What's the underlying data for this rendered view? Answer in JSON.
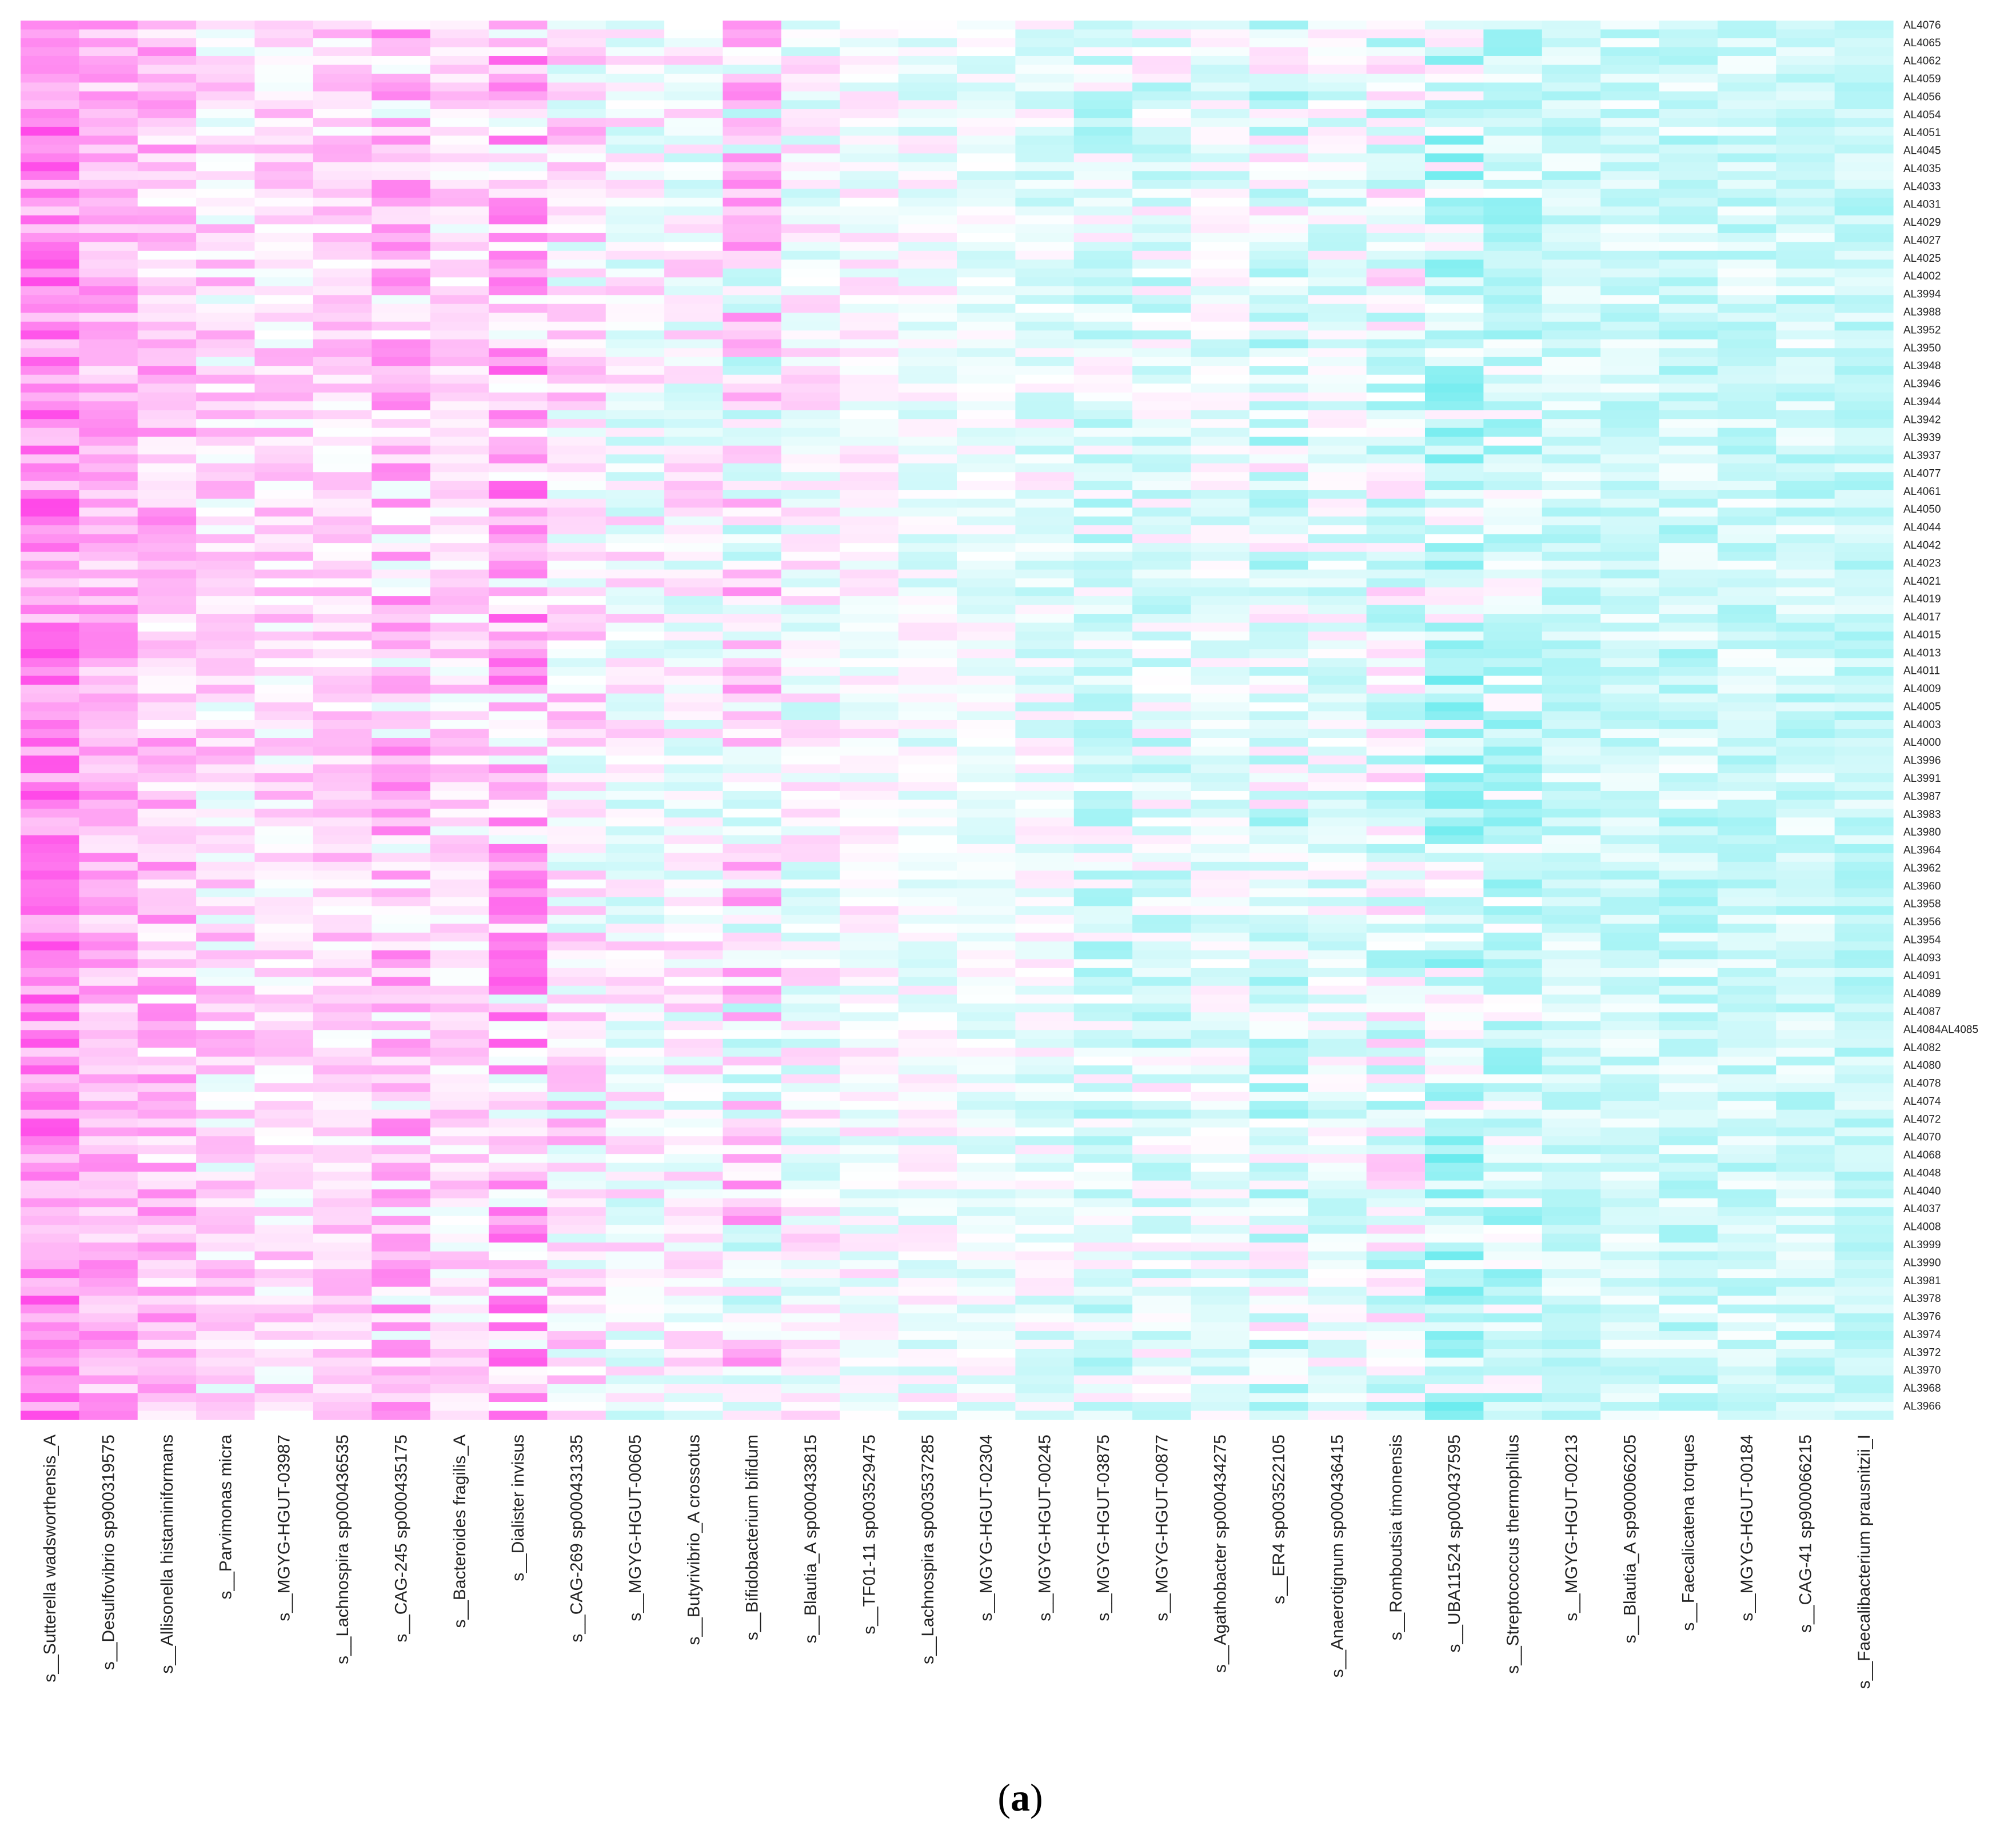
{
  "chart_data": {
    "type": "heatmap",
    "panel_label": "(a)",
    "panel_letter": "a",
    "colors": {
      "low": "#44e6ea",
      "mid": "#ffffff",
      "high": "#ff49e8"
    },
    "columns": [
      "s__Sutterella wadsworthensis_A",
      "s__Desulfovibrio sp900319575",
      "s__Allisonella histaminiformans",
      "s__Parvimonas micra",
      "s__MGYG-HGUT-03987",
      "s__Lachnospira sp000436535",
      "s__CAG-245 sp000435175",
      "s__Bacteroides fragilis_A",
      "s__Dialister invisus",
      "s__CAG-269 sp000431335",
      "s__MGYG-HGUT-00605",
      "s__Butyrivibrio_A crossotus",
      "s__Bifidobacterium bifidum",
      "s__Blautia_A sp000433815",
      "s__TF01-11 sp003529475",
      "s__Lachnospira sp003537285",
      "s__MGYG-HGUT-02304",
      "s__MGYG-HGUT-00245",
      "s__MGYG-HGUT-03875",
      "s__MGYG-HGUT-00877",
      "s__Agathobacter sp000434275",
      "s__ER4 sp003522105",
      "s__Anaerotignum sp000436415",
      "s__Romboutsia timonensis",
      "s__UBA11524 sp000437595",
      "s__Streptococcus thermophilus",
      "s__MGYG-HGUT-00213",
      "s__Blautia_A sp900066205",
      "s__Faecalicatena torques",
      "s__MGYG-HGUT-00184",
      "s__CAG-41 sp900066215",
      "s__Faecalibacterium prausnitzii_I"
    ],
    "column_bias": [
      0.62,
      0.42,
      0.34,
      0.16,
      0.18,
      0.22,
      0.28,
      0.16,
      0.36,
      0.12,
      0.0,
      0.02,
      0.12,
      -0.02,
      0.0,
      -0.06,
      -0.08,
      -0.1,
      -0.18,
      -0.14,
      -0.12,
      -0.16,
      -0.12,
      -0.1,
      -0.3,
      -0.28,
      -0.26,
      -0.24,
      -0.28,
      -0.26,
      -0.26,
      -0.3
    ],
    "column_spread": [
      0.38,
      0.3,
      0.36,
      0.36,
      0.3,
      0.26,
      0.46,
      0.28,
      0.56,
      0.4,
      0.34,
      0.34,
      0.56,
      0.32,
      0.24,
      0.26,
      0.2,
      0.28,
      0.34,
      0.34,
      0.24,
      0.42,
      0.28,
      0.44,
      0.5,
      0.38,
      0.22,
      0.22,
      0.26,
      0.24,
      0.24,
      0.2
    ],
    "row_count": 158,
    "row_labels": [
      "AL4076",
      "AL4065",
      "AL4062",
      "AL4059",
      "AL4056",
      "AL4054",
      "AL4051",
      "AL4045",
      "AL4035",
      "AL4033",
      "AL4031",
      "AL4029",
      "AL4027",
      "AL4025",
      "AL4002",
      "AL3994",
      "AL3988",
      "AL3952",
      "AL3950",
      "AL3948",
      "AL3946",
      "AL3944",
      "AL3942",
      "AL3939",
      "AL3937",
      "AL4077",
      "AL4061",
      "AL4050",
      "AL4044",
      "AL4042",
      "AL4023",
      "AL4021",
      "AL4019",
      "AL4017",
      "AL4015",
      "AL4013",
      "AL4011",
      "AL4009",
      "AL4005",
      "AL4003",
      "AL4000",
      "AL3996",
      "AL3991",
      "AL3987",
      "AL3983",
      "AL3980",
      "AL3964",
      "AL3962",
      "AL3960",
      "AL3958",
      "AL3956",
      "AL3954",
      "AL4093",
      "AL4091",
      "AL4089",
      "AL4087",
      "AL4084AL4085",
      "AL4082",
      "AL4080",
      "AL4078",
      "AL4074",
      "AL4072",
      "AL4070",
      "AL4068",
      "AL4048",
      "AL4040",
      "AL4037",
      "AL4008",
      "AL3999",
      "AL3990",
      "AL3981",
      "AL3978",
      "AL3976",
      "AL3974",
      "AL3972",
      "AL3970",
      "AL3968",
      "AL3966"
    ]
  }
}
